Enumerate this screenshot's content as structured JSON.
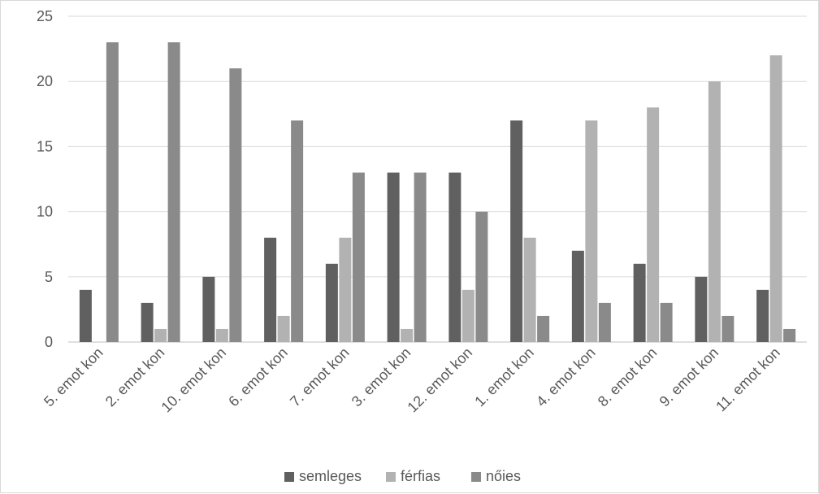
{
  "chart_data": {
    "type": "bar",
    "categories": [
      "5. emot kon",
      "2. emot kon",
      "10. emot kon",
      "6. emot kon",
      "7. emot kon",
      "3. emot kon",
      "12. emot kon",
      "1. emot kon",
      "4. emot kon",
      "8. emot kon",
      "9. emot kon",
      "11. emot kon"
    ],
    "series": [
      {
        "name": "semleges",
        "color": "#606060",
        "values": [
          4,
          3,
          5,
          8,
          6,
          13,
          13,
          17,
          7,
          6,
          5,
          4
        ]
      },
      {
        "name": "férfias",
        "color": "#b2b2b2",
        "values": [
          0,
          1,
          1,
          2,
          8,
          1,
          4,
          8,
          17,
          18,
          20,
          22
        ]
      },
      {
        "name": "nőies",
        "color": "#8a8a8a",
        "values": [
          23,
          23,
          21,
          17,
          13,
          13,
          10,
          2,
          3,
          3,
          2,
          1
        ]
      }
    ],
    "ylim": [
      0,
      25
    ],
    "yticks": [
      0,
      5,
      10,
      15,
      20,
      25
    ],
    "grid": true,
    "legend": "bottom",
    "title": "",
    "xlabel": "",
    "ylabel": ""
  }
}
